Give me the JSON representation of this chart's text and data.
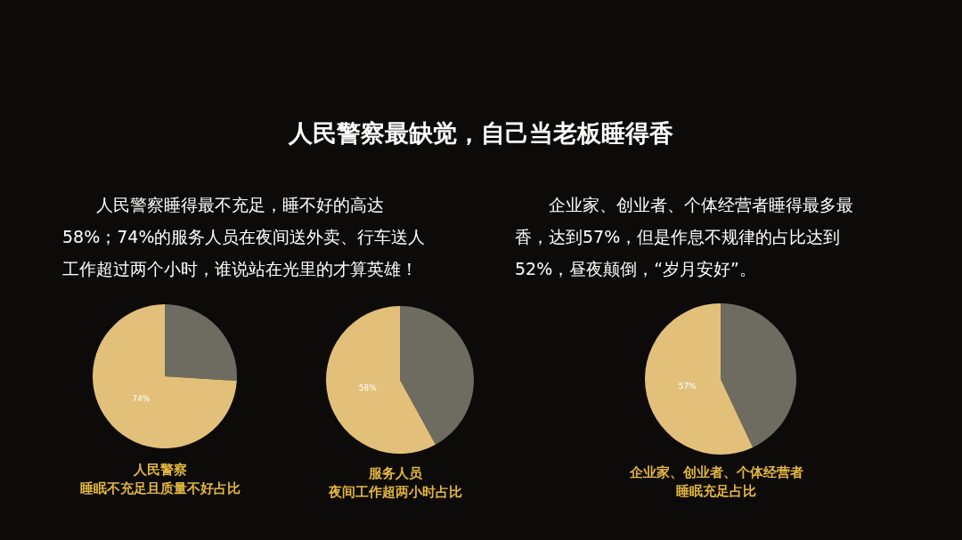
{
  "chart_data": [
    {
      "type": "other",
      "title": "人民警察最缺觉，自己当老板睡得香",
      "annotations": [
        "人民警察睡得最不充足，睡不好的高达58%；74%的服务人员在夜间送外卖、行车送人工作超过两个小时，谁说站在光里的才算英雄！",
        "企业家、创业者、个体经营者睡得最多最香，达到57%，但是作息不规律的占比达到52%，昼夜颠倒，“岁月安好”。"
      ]
    },
    {
      "type": "pie",
      "title": "人民警察",
      "subtitle": "睡眠不充足且质量不好占比",
      "categories": [
        null,
        null
      ],
      "values": [
        26,
        74
      ],
      "colors": [
        "#6e6b60",
        "#e3c07a"
      ],
      "value_labels": [
        null,
        "74%"
      ]
    },
    {
      "type": "pie",
      "title": "服务人员",
      "subtitle": "夜间工作超两小时占比",
      "categories": [
        null,
        null
      ],
      "values": [
        42,
        58
      ],
      "colors": [
        "#6e6b60",
        "#e3c07a"
      ],
      "value_labels": [
        null,
        "58%"
      ]
    },
    {
      "type": "pie",
      "title": "企业家、创业者、个体经营者",
      "subtitle": "睡眠充足占比",
      "categories": [
        null,
        null
      ],
      "values": [
        43,
        57
      ],
      "colors": [
        "#6e6b60",
        "#e3c07a"
      ],
      "value_labels": [
        null,
        "57%"
      ]
    }
  ]
}
